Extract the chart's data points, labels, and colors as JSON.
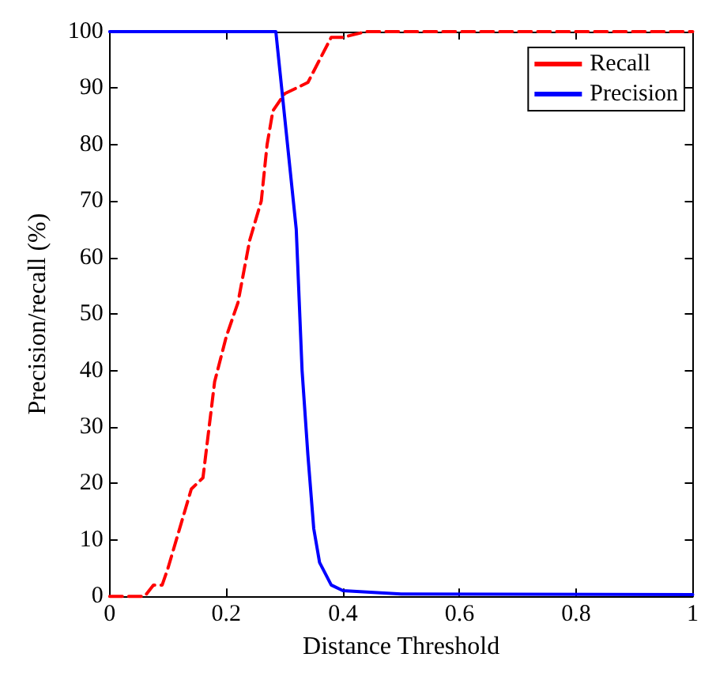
{
  "chart_data": {
    "type": "line",
    "xlabel": "Distance Threshold",
    "ylabel": "Precision/recall (%)",
    "xlim": [
      0,
      1
    ],
    "xticks": [
      0,
      0.2,
      0.4,
      0.6,
      0.8,
      1
    ],
    "ylim": [
      0,
      100
    ],
    "yticks": [
      0,
      10,
      20,
      30,
      40,
      50,
      60,
      70,
      80,
      90,
      100
    ],
    "grid": false,
    "legend": "top right",
    "marker": "none",
    "series": [
      {
        "name": "Recall",
        "color": "#ff0000",
        "line_style": "dashed",
        "x": [
          0,
          0.06,
          0.075,
          0.09,
          0.1,
          0.12,
          0.14,
          0.16,
          0.18,
          0.2,
          0.22,
          0.24,
          0.26,
          0.27,
          0.28,
          0.3,
          0.32,
          0.34,
          0.36,
          0.38,
          0.4,
          0.44,
          1
        ],
        "values": [
          0,
          0,
          2,
          2,
          5,
          12,
          19,
          21,
          38,
          46,
          52,
          63,
          70,
          80,
          86,
          89,
          90,
          91,
          95,
          99,
          99,
          100,
          100
        ]
      },
      {
        "name": "Precision",
        "color": "#0000ff",
        "line_style": "solid",
        "x": [
          0,
          0.285,
          0.29,
          0.3,
          0.31,
          0.32,
          0.33,
          0.34,
          0.35,
          0.36,
          0.38,
          0.4,
          0.5,
          1
        ],
        "values": [
          100,
          100,
          95,
          85,
          75,
          65,
          40,
          25,
          12,
          6,
          2,
          1,
          0.4,
          0.3
        ]
      }
    ]
  }
}
